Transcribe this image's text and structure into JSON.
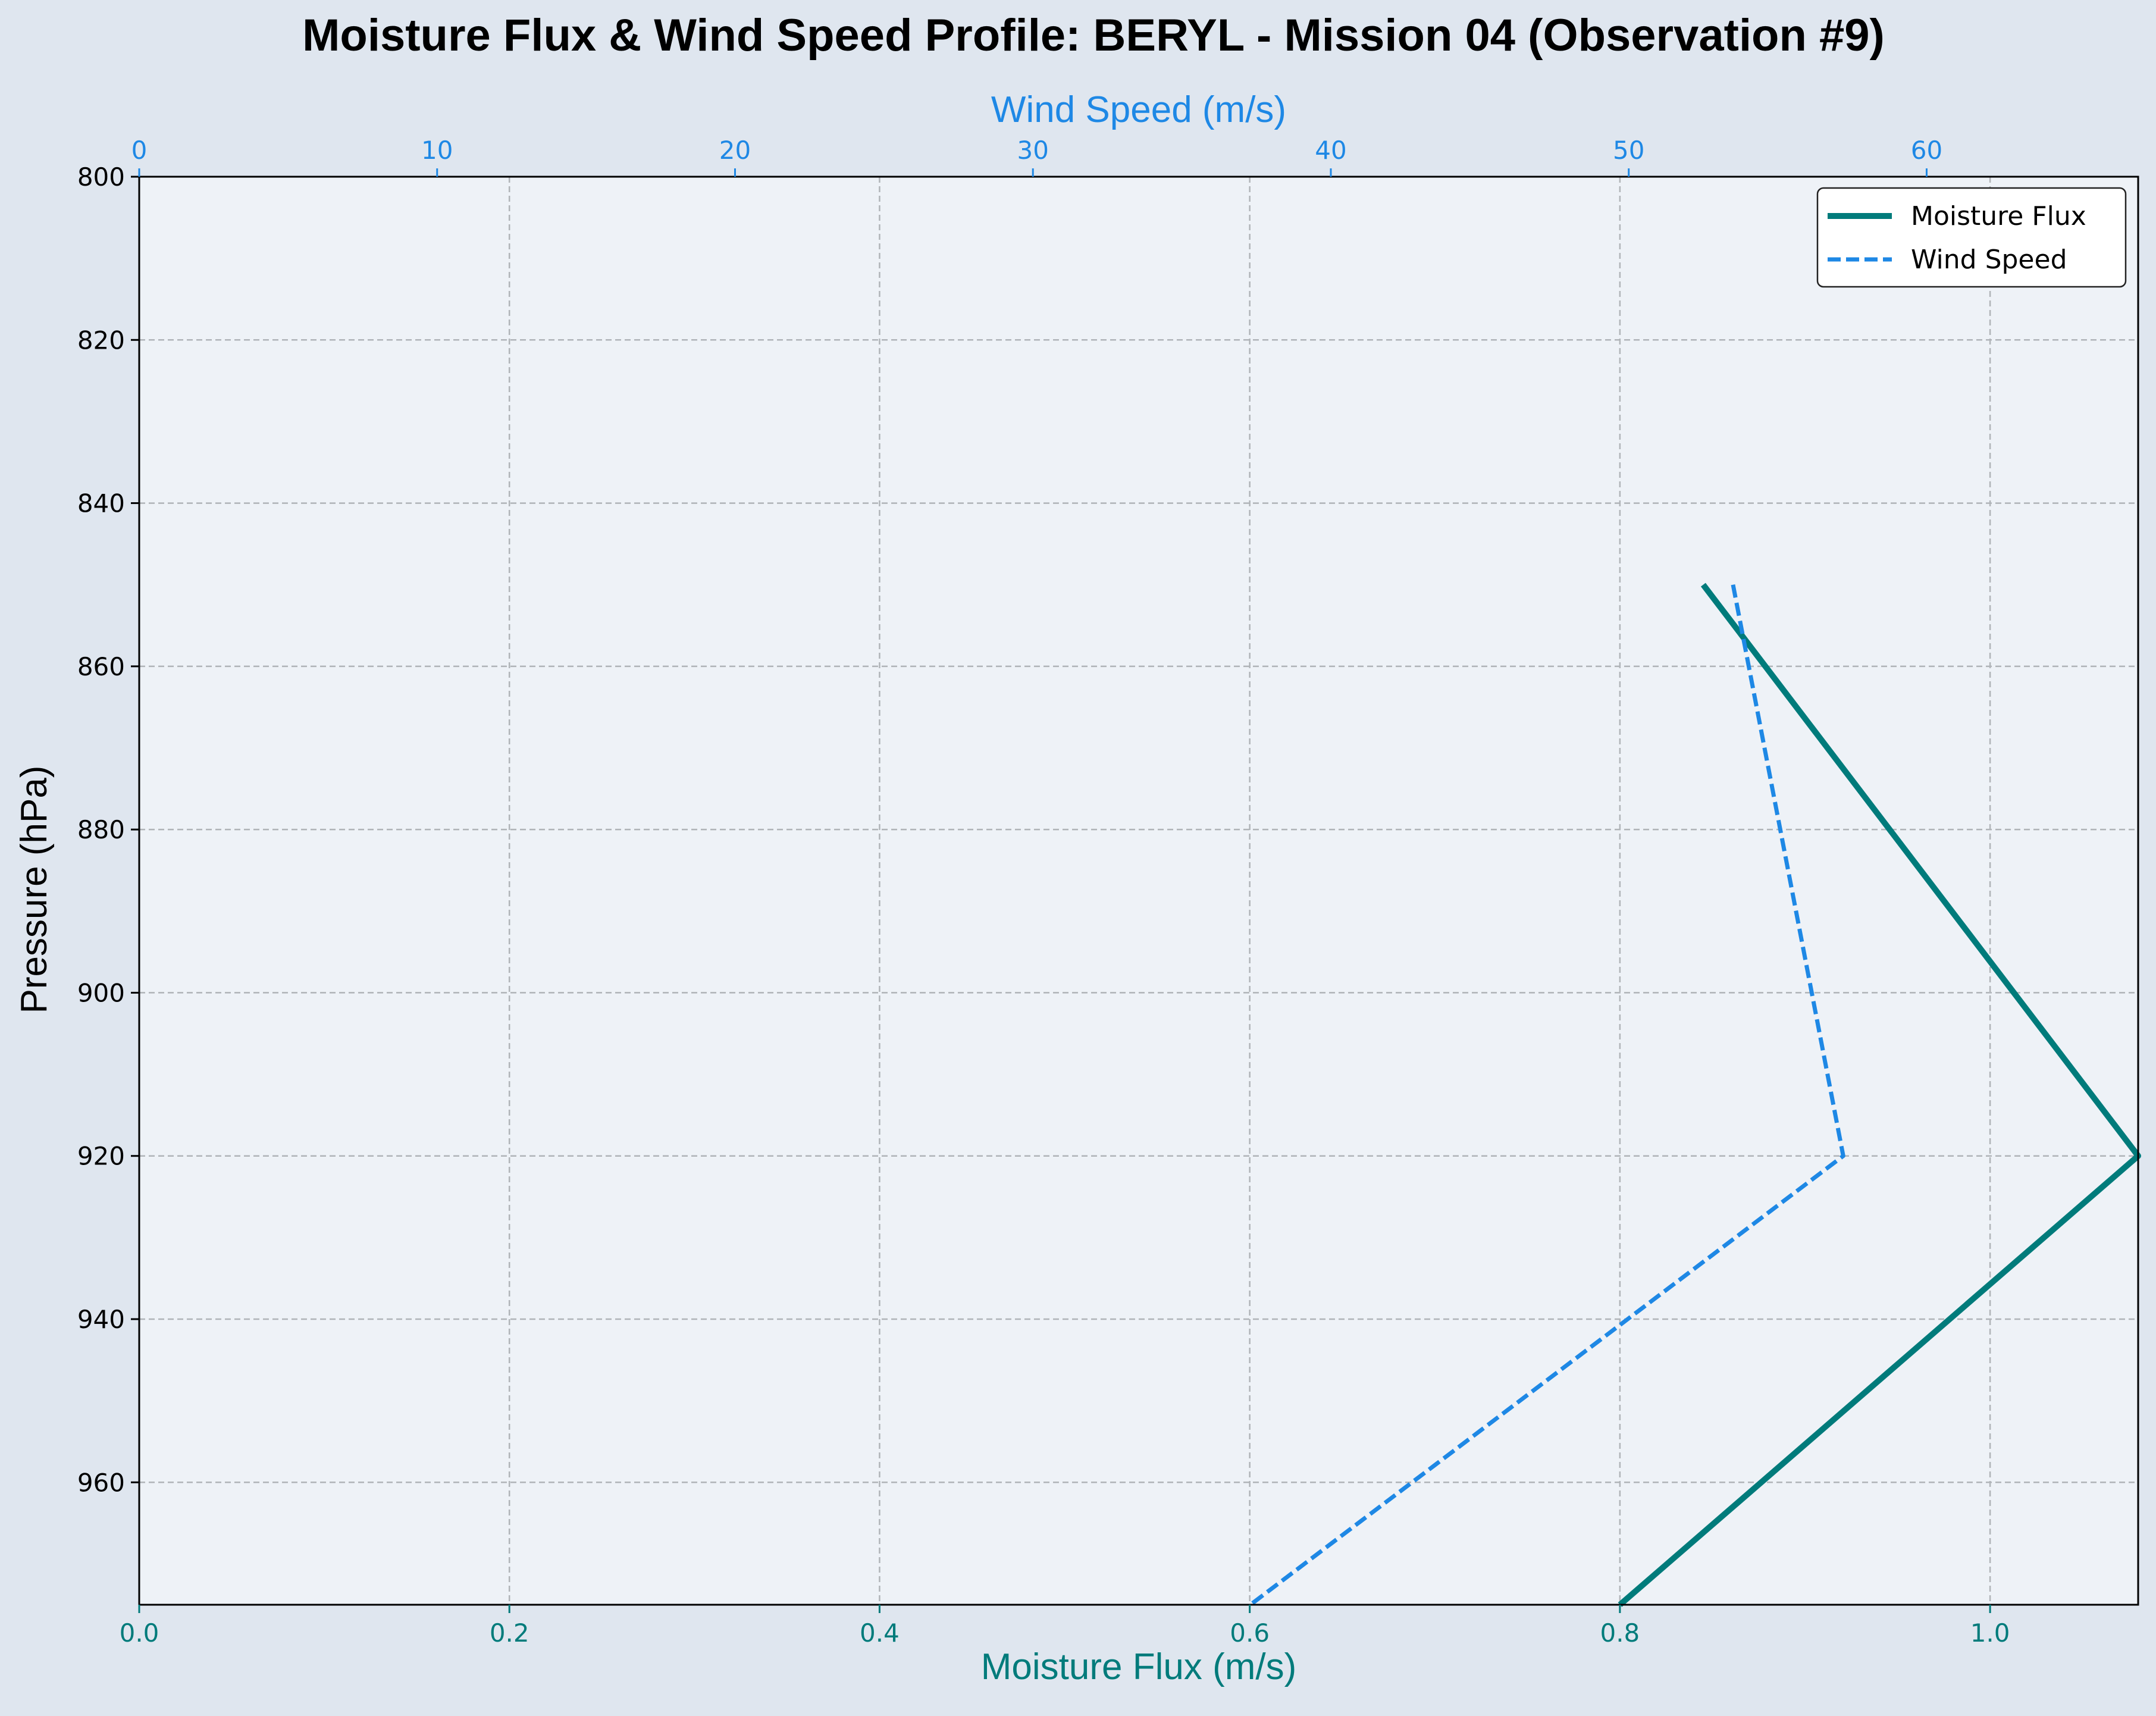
{
  "chart_data": {
    "type": "line",
    "title": "Moisture Flux & Wind Speed Profile: BERYL - Mission 04 (Observation #9)",
    "ylabel": "Pressure (hPa)",
    "xlabel": "Moisture Flux (m/s)",
    "x2label": "Wind Speed (m/s)",
    "ylim": [
      975,
      800
    ],
    "y_inverted": true,
    "xlim": [
      0.0,
      1.08
    ],
    "x2lim": [
      0,
      67.1
    ],
    "yticks": [
      800,
      820,
      840,
      860,
      880,
      900,
      920,
      940,
      960
    ],
    "xticks": [
      0.0,
      0.2,
      0.4,
      0.6,
      0.8,
      1.0
    ],
    "x2ticks": [
      0,
      10,
      20,
      30,
      40,
      50,
      60
    ],
    "grid": true,
    "legend_position": "top-right",
    "series": [
      {
        "name": "Moisture Flux",
        "axis": "bottom",
        "color": "#007b7b",
        "style": "solid",
        "x": [
          0.845,
          1.08,
          0.8
        ],
        "y": [
          850,
          920,
          975
        ]
      },
      {
        "name": "Wind Speed",
        "axis": "top",
        "color": "#1e88e5",
        "style": "dashed",
        "x": [
          53.5,
          57.2,
          37.3
        ],
        "y": [
          850,
          920,
          975
        ]
      }
    ],
    "colors": {
      "page_background": "#dfe6ef",
      "plot_background": "#eef2f7",
      "bottom_axis": "#007b7b",
      "top_axis": "#1e88e5"
    }
  }
}
